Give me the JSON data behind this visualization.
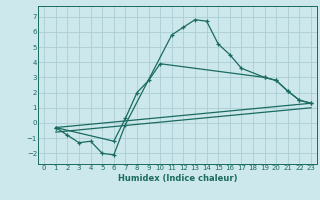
{
  "xlabel": "Humidex (Indice chaleur)",
  "ylabel": "",
  "xlim": [
    -0.5,
    23.5
  ],
  "ylim": [
    -2.7,
    7.7
  ],
  "xticks": [
    0,
    1,
    2,
    3,
    4,
    5,
    6,
    7,
    8,
    9,
    10,
    11,
    12,
    13,
    14,
    15,
    16,
    17,
    18,
    19,
    20,
    21,
    22,
    23
  ],
  "yticks": [
    -2,
    -1,
    0,
    1,
    2,
    3,
    4,
    5,
    6,
    7
  ],
  "bg_color": "#cce8ec",
  "line_color": "#1a6b60",
  "grid_color": "#aacdd4",
  "curve1_x": [
    1,
    2,
    3,
    4,
    5,
    6,
    7,
    11,
    12,
    13,
    14,
    15,
    16,
    17,
    19,
    20,
    21,
    22,
    23
  ],
  "curve1_y": [
    -0.3,
    -0.8,
    -1.3,
    -1.2,
    -2.0,
    -2.1,
    -0.1,
    5.8,
    6.3,
    6.8,
    6.7,
    5.2,
    4.5,
    3.6,
    3.0,
    2.8,
    2.1,
    1.5,
    1.3
  ],
  "curve2_x": [
    1,
    6,
    7,
    8,
    9,
    10,
    19,
    20,
    21,
    22,
    23
  ],
  "curve2_y": [
    -0.3,
    -1.2,
    0.3,
    2.0,
    2.8,
    3.9,
    3.0,
    2.8,
    2.1,
    1.5,
    1.3
  ],
  "line1_x": [
    1,
    23
  ],
  "line1_y": [
    -0.3,
    1.3
  ],
  "line2_x": [
    1,
    23
  ],
  "line2_y": [
    -0.6,
    1.0
  ]
}
